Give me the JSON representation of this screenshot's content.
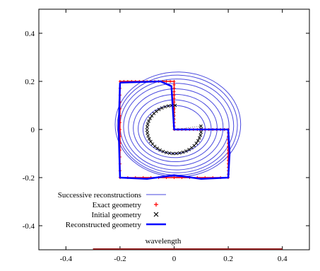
{
  "chart_data": {
    "type": "line",
    "title": "",
    "xlabel": "",
    "ylabel": "",
    "xlim": [
      -0.5,
      0.5
    ],
    "ylim": [
      -0.5,
      0.5
    ],
    "grid": false,
    "legend_position": "bottom-left",
    "x_ticks": [
      -0.4,
      -0.2,
      0,
      0.2,
      0.4
    ],
    "x_tick_labels": [
      "-0.4",
      "-0.2",
      "0",
      "0.2",
      "0.4"
    ],
    "y_ticks": [
      -0.4,
      -0.2,
      0,
      0.2,
      0.4
    ],
    "y_tick_labels": [
      "-0.4",
      "-0.2",
      "0",
      "0.2",
      "0.4"
    ],
    "legend": [
      {
        "label": "Successive reconstructions",
        "marker": "line",
        "color": "#4a4adf"
      },
      {
        "label": "Exact geometry",
        "marker": "plus",
        "color": "#ff0000"
      },
      {
        "label": "Initial geometry",
        "marker": "cross",
        "color": "#000000"
      },
      {
        "label": "Reconstructed geometry",
        "marker": "thick-line",
        "color": "#0000ff"
      }
    ],
    "annotation": {
      "label": "wavelength",
      "x": [
        -0.3,
        0.4
      ],
      "y": -0.5,
      "color": "#8b1a1a"
    },
    "exact_geometry": {
      "name": "Exact geometry",
      "color": "#ff0000",
      "vertices_x": [
        -0.2,
        0.0,
        0.0,
        0.2,
        0.2,
        -0.2,
        -0.2
      ],
      "vertices_y": [
        0.2,
        0.2,
        0.0,
        0.0,
        -0.2,
        -0.2,
        0.2
      ]
    },
    "initial_geometry": {
      "name": "Initial geometry",
      "color": "#000000",
      "center": [
        0.0,
        0.0
      ],
      "radius": 0.1,
      "arc_from_deg": 8,
      "arc_to_deg": 88,
      "n_points": 40
    },
    "successive_reconstructions": {
      "name": "Successive reconstructions",
      "color": "#4a4adf",
      "center": [
        0.0,
        0.0
      ],
      "rx": [
        0.115,
        0.135,
        0.155,
        0.175,
        0.195,
        0.21,
        0.222,
        0.232
      ],
      "ry": [
        0.1,
        0.12,
        0.14,
        0.16,
        0.18,
        0.195,
        0.208,
        0.218
      ]
    },
    "reconstructed_geometry": {
      "name": "Reconstructed geometry",
      "color": "#0000ff",
      "x": [
        -0.2,
        -0.05,
        -0.01,
        0.0,
        0.01,
        0.2,
        0.205,
        0.2,
        0.1,
        0.0,
        -0.1,
        -0.2,
        -0.205,
        -0.2
      ],
      "y": [
        0.195,
        0.2,
        0.18,
        0.0,
        0.0,
        0.0,
        -0.1,
        -0.2,
        -0.205,
        -0.19,
        -0.205,
        -0.2,
        0.0,
        0.195
      ]
    }
  }
}
